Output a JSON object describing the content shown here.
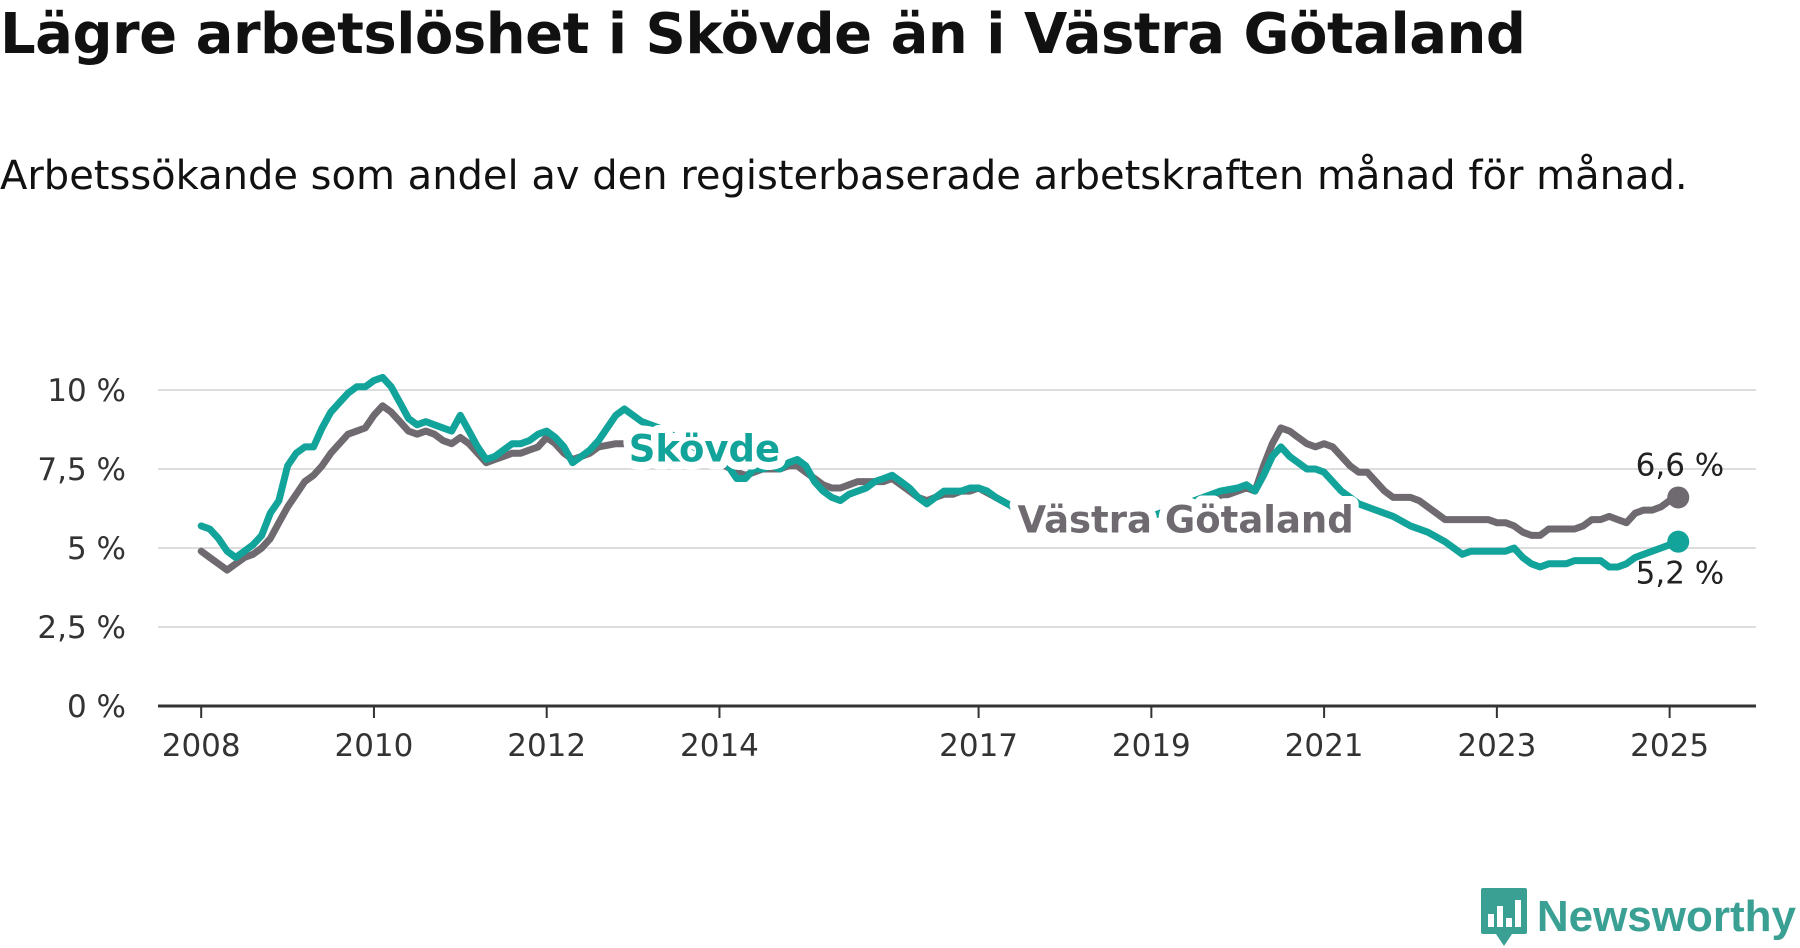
{
  "header": {
    "title": "Lägre arbetslöshet i Skövde än i Västra Götaland",
    "subtitle": "Arbetssökande som andel av den registerbaserade arbetskraften månad för månad."
  },
  "brand": {
    "name": "Newsworthy"
  },
  "colors": {
    "skovde": "#12a39a",
    "vg": "#6e6a70",
    "grid": "#dddddd",
    "axis": "#333333"
  },
  "chart_data": {
    "type": "line",
    "x_ticks": [
      2008,
      2010,
      2012,
      2014,
      2017,
      2019,
      2021,
      2023,
      2025
    ],
    "y_ticks": [
      {
        "value": 0,
        "label": "0 %"
      },
      {
        "value": 2.5,
        "label": "2,5 %"
      },
      {
        "value": 5,
        "label": "5 %"
      },
      {
        "value": 7.5,
        "label": "7,5 %"
      },
      {
        "value": 10,
        "label": "10 %"
      }
    ],
    "ylim": [
      0,
      10
    ],
    "xlim": [
      2007.5,
      2026
    ],
    "grid": true,
    "series": [
      {
        "name": "Skövde",
        "color_key": "skovde",
        "end_label": "5,2 %",
        "points": [
          [
            2008.0,
            5.7
          ],
          [
            2008.1,
            5.6
          ],
          [
            2008.2,
            5.3
          ],
          [
            2008.3,
            4.9
          ],
          [
            2008.4,
            4.7
          ],
          [
            2008.5,
            4.9
          ],
          [
            2008.6,
            5.1
          ],
          [
            2008.7,
            5.4
          ],
          [
            2008.8,
            6.1
          ],
          [
            2008.9,
            6.5
          ],
          [
            2009.0,
            7.6
          ],
          [
            2009.1,
            8.0
          ],
          [
            2009.2,
            8.2
          ],
          [
            2009.3,
            8.2
          ],
          [
            2009.4,
            8.8
          ],
          [
            2009.5,
            9.3
          ],
          [
            2009.6,
            9.6
          ],
          [
            2009.7,
            9.9
          ],
          [
            2009.8,
            10.1
          ],
          [
            2009.9,
            10.1
          ],
          [
            2010.0,
            10.3
          ],
          [
            2010.1,
            10.4
          ],
          [
            2010.2,
            10.1
          ],
          [
            2010.3,
            9.6
          ],
          [
            2010.4,
            9.1
          ],
          [
            2010.5,
            8.9
          ],
          [
            2010.6,
            9.0
          ],
          [
            2010.7,
            8.9
          ],
          [
            2010.8,
            8.8
          ],
          [
            2010.9,
            8.7
          ],
          [
            2011.0,
            9.2
          ],
          [
            2011.1,
            8.7
          ],
          [
            2011.2,
            8.2
          ],
          [
            2011.3,
            7.8
          ],
          [
            2011.4,
            7.9
          ],
          [
            2011.5,
            8.1
          ],
          [
            2011.6,
            8.3
          ],
          [
            2011.7,
            8.3
          ],
          [
            2011.8,
            8.4
          ],
          [
            2011.9,
            8.6
          ],
          [
            2012.0,
            8.7
          ],
          [
            2012.1,
            8.5
          ],
          [
            2012.2,
            8.2
          ],
          [
            2012.3,
            7.7
          ],
          [
            2012.4,
            7.9
          ],
          [
            2012.5,
            8.1
          ],
          [
            2012.6,
            8.4
          ],
          [
            2012.7,
            8.8
          ],
          [
            2012.8,
            9.2
          ],
          [
            2012.9,
            9.4
          ],
          [
            2013.0,
            9.2
          ],
          [
            2013.1,
            9.0
          ],
          [
            2013.3,
            8.8
          ],
          [
            2013.5,
            8.5
          ],
          [
            2013.7,
            8.2
          ],
          [
            2013.9,
            8.0
          ],
          [
            2014.1,
            7.6
          ],
          [
            2014.2,
            7.2
          ],
          [
            2014.3,
            7.2
          ],
          [
            2014.4,
            7.5
          ],
          [
            2014.5,
            7.5
          ],
          [
            2014.6,
            7.6
          ],
          [
            2014.7,
            7.5
          ],
          [
            2014.8,
            7.7
          ],
          [
            2014.9,
            7.8
          ],
          [
            2015.0,
            7.6
          ],
          [
            2015.1,
            7.1
          ],
          [
            2015.2,
            6.8
          ],
          [
            2015.3,
            6.6
          ],
          [
            2015.4,
            6.5
          ],
          [
            2015.5,
            6.7
          ],
          [
            2015.6,
            6.8
          ],
          [
            2015.7,
            6.9
          ],
          [
            2015.8,
            7.1
          ],
          [
            2015.9,
            7.2
          ],
          [
            2016.0,
            7.3
          ],
          [
            2016.1,
            7.1
          ],
          [
            2016.2,
            6.9
          ],
          [
            2016.3,
            6.6
          ],
          [
            2016.4,
            6.4
          ],
          [
            2016.5,
            6.6
          ],
          [
            2016.6,
            6.8
          ],
          [
            2016.7,
            6.8
          ],
          [
            2016.8,
            6.8
          ],
          [
            2016.9,
            6.9
          ],
          [
            2017.0,
            6.9
          ],
          [
            2017.1,
            6.8
          ],
          [
            2017.2,
            6.6
          ],
          [
            2017.4,
            6.3
          ],
          [
            2017.6,
            6.1
          ],
          [
            2017.8,
            6.0
          ],
          [
            2018.0,
            5.9
          ],
          [
            2018.2,
            5.8
          ],
          [
            2018.4,
            5.7
          ],
          [
            2018.6,
            5.7
          ],
          [
            2018.8,
            5.8
          ],
          [
            2019.0,
            6.0
          ],
          [
            2019.2,
            6.2
          ],
          [
            2019.4,
            6.4
          ],
          [
            2019.6,
            6.6
          ],
          [
            2019.8,
            6.8
          ],
          [
            2020.0,
            6.9
          ],
          [
            2020.1,
            7.0
          ],
          [
            2020.2,
            6.8
          ],
          [
            2020.3,
            7.3
          ],
          [
            2020.4,
            7.9
          ],
          [
            2020.5,
            8.2
          ],
          [
            2020.6,
            7.9
          ],
          [
            2020.7,
            7.7
          ],
          [
            2020.8,
            7.5
          ],
          [
            2020.9,
            7.5
          ],
          [
            2021.0,
            7.4
          ],
          [
            2021.1,
            7.1
          ],
          [
            2021.2,
            6.8
          ],
          [
            2021.4,
            6.4
          ],
          [
            2021.6,
            6.2
          ],
          [
            2021.8,
            6.0
          ],
          [
            2022.0,
            5.7
          ],
          [
            2022.2,
            5.5
          ],
          [
            2022.4,
            5.2
          ],
          [
            2022.5,
            5.0
          ],
          [
            2022.6,
            4.8
          ],
          [
            2022.7,
            4.9
          ],
          [
            2022.8,
            4.9
          ],
          [
            2022.9,
            4.9
          ],
          [
            2023.0,
            4.9
          ],
          [
            2023.1,
            4.9
          ],
          [
            2023.2,
            5.0
          ],
          [
            2023.3,
            4.7
          ],
          [
            2023.4,
            4.5
          ],
          [
            2023.5,
            4.4
          ],
          [
            2023.6,
            4.5
          ],
          [
            2023.7,
            4.5
          ],
          [
            2023.8,
            4.5
          ],
          [
            2023.9,
            4.6
          ],
          [
            2024.0,
            4.6
          ],
          [
            2024.1,
            4.6
          ],
          [
            2024.2,
            4.6
          ],
          [
            2024.3,
            4.4
          ],
          [
            2024.4,
            4.4
          ],
          [
            2024.5,
            4.5
          ],
          [
            2024.6,
            4.7
          ],
          [
            2024.7,
            4.8
          ],
          [
            2024.8,
            4.9
          ],
          [
            2024.9,
            5.0
          ],
          [
            2025.0,
            5.1
          ],
          [
            2025.1,
            5.2
          ]
        ]
      },
      {
        "name": "Västra Götaland",
        "color_key": "vg",
        "end_label": "6,6 %",
        "points": [
          [
            2008.0,
            4.9
          ],
          [
            2008.1,
            4.7
          ],
          [
            2008.2,
            4.5
          ],
          [
            2008.3,
            4.3
          ],
          [
            2008.4,
            4.5
          ],
          [
            2008.5,
            4.7
          ],
          [
            2008.6,
            4.8
          ],
          [
            2008.7,
            5.0
          ],
          [
            2008.8,
            5.3
          ],
          [
            2008.9,
            5.8
          ],
          [
            2009.0,
            6.3
          ],
          [
            2009.1,
            6.7
          ],
          [
            2009.2,
            7.1
          ],
          [
            2009.3,
            7.3
          ],
          [
            2009.4,
            7.6
          ],
          [
            2009.5,
            8.0
          ],
          [
            2009.6,
            8.3
          ],
          [
            2009.7,
            8.6
          ],
          [
            2009.8,
            8.7
          ],
          [
            2009.9,
            8.8
          ],
          [
            2010.0,
            9.2
          ],
          [
            2010.1,
            9.5
          ],
          [
            2010.2,
            9.3
          ],
          [
            2010.3,
            9.0
          ],
          [
            2010.4,
            8.7
          ],
          [
            2010.5,
            8.6
          ],
          [
            2010.6,
            8.7
          ],
          [
            2010.7,
            8.6
          ],
          [
            2010.8,
            8.4
          ],
          [
            2010.9,
            8.3
          ],
          [
            2011.0,
            8.5
          ],
          [
            2011.1,
            8.3
          ],
          [
            2011.2,
            8.0
          ],
          [
            2011.3,
            7.7
          ],
          [
            2011.4,
            7.8
          ],
          [
            2011.5,
            7.9
          ],
          [
            2011.6,
            8.0
          ],
          [
            2011.7,
            8.0
          ],
          [
            2011.8,
            8.1
          ],
          [
            2011.9,
            8.2
          ],
          [
            2012.0,
            8.5
          ],
          [
            2012.1,
            8.3
          ],
          [
            2012.2,
            8.0
          ],
          [
            2012.3,
            7.8
          ],
          [
            2012.4,
            7.9
          ],
          [
            2012.5,
            8.0
          ],
          [
            2012.6,
            8.2
          ],
          [
            2012.8,
            8.3
          ],
          [
            2013.0,
            8.3
          ],
          [
            2013.2,
            8.2
          ],
          [
            2013.4,
            8.0
          ],
          [
            2013.6,
            7.9
          ],
          [
            2013.8,
            7.8
          ],
          [
            2014.0,
            7.7
          ],
          [
            2014.2,
            7.4
          ],
          [
            2014.3,
            7.3
          ],
          [
            2014.4,
            7.4
          ],
          [
            2014.5,
            7.5
          ],
          [
            2014.6,
            7.5
          ],
          [
            2014.7,
            7.5
          ],
          [
            2014.8,
            7.6
          ],
          [
            2014.9,
            7.6
          ],
          [
            2015.0,
            7.4
          ],
          [
            2015.1,
            7.2
          ],
          [
            2015.2,
            7.0
          ],
          [
            2015.3,
            6.9
          ],
          [
            2015.4,
            6.9
          ],
          [
            2015.5,
            7.0
          ],
          [
            2015.6,
            7.1
          ],
          [
            2015.7,
            7.1
          ],
          [
            2015.8,
            7.1
          ],
          [
            2015.9,
            7.1
          ],
          [
            2016.0,
            7.2
          ],
          [
            2016.1,
            7.0
          ],
          [
            2016.2,
            6.8
          ],
          [
            2016.3,
            6.6
          ],
          [
            2016.4,
            6.5
          ],
          [
            2016.5,
            6.6
          ],
          [
            2016.6,
            6.7
          ],
          [
            2016.7,
            6.7
          ],
          [
            2016.8,
            6.8
          ],
          [
            2016.9,
            6.8
          ],
          [
            2017.0,
            6.9
          ],
          [
            2017.2,
            6.6
          ],
          [
            2017.4,
            6.3
          ],
          [
            2017.6,
            6.1
          ],
          [
            2017.8,
            6.0
          ],
          [
            2018.0,
            5.9
          ],
          [
            2018.2,
            5.8
          ],
          [
            2018.4,
            5.7
          ],
          [
            2018.6,
            5.7
          ],
          [
            2018.8,
            5.8
          ],
          [
            2019.0,
            6.0
          ],
          [
            2019.2,
            6.2
          ],
          [
            2019.4,
            6.4
          ],
          [
            2019.6,
            6.5
          ],
          [
            2019.8,
            6.6
          ],
          [
            2020.0,
            6.8
          ],
          [
            2020.1,
            6.9
          ],
          [
            2020.2,
            6.8
          ],
          [
            2020.3,
            7.6
          ],
          [
            2020.4,
            8.3
          ],
          [
            2020.5,
            8.8
          ],
          [
            2020.6,
            8.7
          ],
          [
            2020.7,
            8.5
          ],
          [
            2020.8,
            8.3
          ],
          [
            2020.9,
            8.2
          ],
          [
            2021.0,
            8.3
          ],
          [
            2021.1,
            8.2
          ],
          [
            2021.2,
            7.9
          ],
          [
            2021.3,
            7.6
          ],
          [
            2021.4,
            7.4
          ],
          [
            2021.5,
            7.4
          ],
          [
            2021.6,
            7.1
          ],
          [
            2021.7,
            6.8
          ],
          [
            2021.8,
            6.6
          ],
          [
            2021.9,
            6.6
          ],
          [
            2022.0,
            6.6
          ],
          [
            2022.1,
            6.5
          ],
          [
            2022.2,
            6.3
          ],
          [
            2022.3,
            6.1
          ],
          [
            2022.4,
            5.9
          ],
          [
            2022.5,
            5.9
          ],
          [
            2022.6,
            5.9
          ],
          [
            2022.7,
            5.9
          ],
          [
            2022.8,
            5.9
          ],
          [
            2022.9,
            5.9
          ],
          [
            2023.0,
            5.8
          ],
          [
            2023.1,
            5.8
          ],
          [
            2023.2,
            5.7
          ],
          [
            2023.3,
            5.5
          ],
          [
            2023.4,
            5.4
          ],
          [
            2023.5,
            5.4
          ],
          [
            2023.6,
            5.6
          ],
          [
            2023.7,
            5.6
          ],
          [
            2023.8,
            5.6
          ],
          [
            2023.9,
            5.6
          ],
          [
            2024.0,
            5.7
          ],
          [
            2024.1,
            5.9
          ],
          [
            2024.2,
            5.9
          ],
          [
            2024.3,
            6.0
          ],
          [
            2024.4,
            5.9
          ],
          [
            2024.5,
            5.8
          ],
          [
            2024.6,
            6.1
          ],
          [
            2024.7,
            6.2
          ],
          [
            2024.8,
            6.2
          ],
          [
            2024.9,
            6.3
          ],
          [
            2025.0,
            6.5
          ],
          [
            2025.1,
            6.6
          ]
        ]
      }
    ]
  }
}
